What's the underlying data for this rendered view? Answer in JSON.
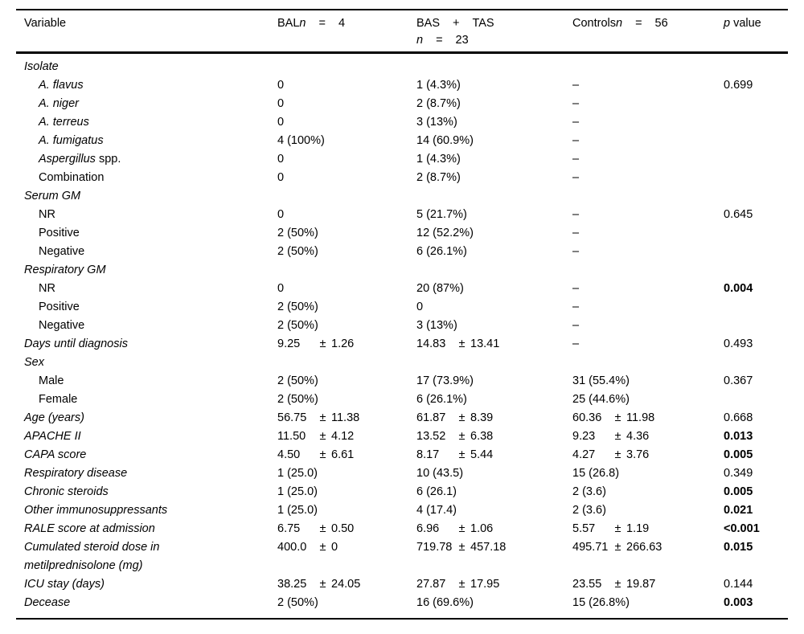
{
  "table": {
    "pm": "±",
    "header": {
      "variable": "Variable",
      "bal": {
        "label": "BAL",
        "n": "n",
        "eq": "=",
        "count": "4"
      },
      "bas": {
        "part1": "BAS",
        "plus": "+",
        "part2": "TAS",
        "n": "n",
        "eq": "=",
        "count": "23"
      },
      "controls": {
        "label": "Controls",
        "n": "n",
        "eq": "=",
        "count": "56"
      },
      "pvalue": {
        "p": "p",
        "rest": "value"
      }
    },
    "rows": [
      {
        "label": "Isolate",
        "italic": true,
        "indent": false,
        "cells": [
          null,
          null,
          null
        ],
        "p": null
      },
      {
        "label": "A. flavus",
        "italic": true,
        "indent": true,
        "cells": [
          "0",
          "1 (4.3%)",
          "–"
        ],
        "p": "0.699",
        "pbold": false
      },
      {
        "label": "A. niger",
        "italic": true,
        "indent": true,
        "cells": [
          "0",
          "2 (8.7%)",
          "–"
        ],
        "p": null
      },
      {
        "label": "A. terreus",
        "italic": true,
        "indent": true,
        "cells": [
          "0",
          "3 (13%)",
          "–"
        ],
        "p": null
      },
      {
        "label": "A. fumigatus",
        "italic": true,
        "indent": true,
        "cells": [
          "4 (100%)",
          "14 (60.9%)",
          "–"
        ],
        "p": null
      },
      {
        "label": "Aspergillus",
        "label_suffix": " spp.",
        "italic": true,
        "indent": true,
        "cells": [
          "0",
          "1 (4.3%)",
          "–"
        ],
        "p": null
      },
      {
        "label": "Combination",
        "italic": false,
        "indent": true,
        "cells": [
          "0",
          "2 (8.7%)",
          "–"
        ],
        "p": null
      },
      {
        "label": "Serum GM",
        "italic": true,
        "indent": false,
        "cells": [
          null,
          null,
          null
        ],
        "p": null
      },
      {
        "label": "NR",
        "italic": false,
        "indent": true,
        "cells": [
          "0",
          "5 (21.7%)",
          "–"
        ],
        "p": "0.645",
        "pbold": false
      },
      {
        "label": "Positive",
        "italic": false,
        "indent": true,
        "cells": [
          "2 (50%)",
          "12 (52.2%)",
          "–"
        ],
        "p": null
      },
      {
        "label": "Negative",
        "italic": false,
        "indent": true,
        "cells": [
          "2 (50%)",
          "6 (26.1%)",
          "–"
        ],
        "p": null
      },
      {
        "label": "Respiratory GM",
        "italic": true,
        "indent": false,
        "cells": [
          null,
          null,
          null
        ],
        "p": null
      },
      {
        "label": "NR",
        "italic": false,
        "indent": true,
        "cells": [
          "0",
          "20 (87%)",
          "–"
        ],
        "p": "0.004",
        "pbold": true
      },
      {
        "label": "Positive",
        "italic": false,
        "indent": true,
        "cells": [
          "2 (50%)",
          "0",
          "–"
        ],
        "p": null
      },
      {
        "label": "Negative",
        "italic": false,
        "indent": true,
        "cells": [
          "2 (50%)",
          "3 (13%)",
          "–"
        ],
        "p": null
      },
      {
        "label": "Days until diagnosis",
        "italic": true,
        "indent": false,
        "cells": [
          {
            "m": "9.25",
            "s": "1.26"
          },
          {
            "m": "14.83",
            "s": "13.41"
          },
          "–"
        ],
        "p": "0.493",
        "pbold": false
      },
      {
        "label": "Sex",
        "italic": true,
        "indent": false,
        "cells": [
          null,
          null,
          null
        ],
        "p": null
      },
      {
        "label": "Male",
        "italic": false,
        "indent": true,
        "cells": [
          "2 (50%)",
          "17 (73.9%)",
          "31 (55.4%)"
        ],
        "p": "0.367",
        "pbold": false
      },
      {
        "label": "Female",
        "italic": false,
        "indent": true,
        "cells": [
          "2 (50%)",
          "6 (26.1%)",
          "25 (44.6%)"
        ],
        "p": null
      },
      {
        "label": "Age (years)",
        "italic": true,
        "indent": false,
        "cells": [
          {
            "m": "56.75",
            "s": "11.38"
          },
          {
            "m": "61.87",
            "s": "8.39"
          },
          {
            "m": "60.36",
            "s": "11.98"
          }
        ],
        "p": "0.668",
        "pbold": false
      },
      {
        "label": "APACHE II",
        "italic": true,
        "indent": false,
        "cells": [
          {
            "m": "11.50",
            "s": "4.12"
          },
          {
            "m": "13.52",
            "s": "6.38"
          },
          {
            "m": "9.23",
            "s": "4.36"
          }
        ],
        "p": "0.013",
        "pbold": true
      },
      {
        "label": "CAPA score",
        "italic": true,
        "indent": false,
        "cells": [
          {
            "m": "4.50",
            "s": "6.61"
          },
          {
            "m": "8.17",
            "s": "5.44"
          },
          {
            "m": "4.27",
            "s": "3.76"
          }
        ],
        "p": "0.005",
        "pbold": true
      },
      {
        "label": "Respiratory disease",
        "italic": true,
        "indent": false,
        "cells": [
          "1 (25.0)",
          "10 (43.5)",
          "15 (26.8)"
        ],
        "p": "0.349",
        "pbold": false
      },
      {
        "label": "Chronic steroids",
        "italic": true,
        "indent": false,
        "cells": [
          "1 (25.0)",
          "6 (26.1)",
          "2 (3.6)"
        ],
        "p": "0.005",
        "pbold": true
      },
      {
        "label": "Other immunosuppressants",
        "italic": true,
        "indent": false,
        "cells": [
          "1 (25.0)",
          "4 (17.4)",
          "2 (3.6)"
        ],
        "p": "0.021",
        "pbold": true
      },
      {
        "label": "RALE score at admission",
        "italic": true,
        "indent": false,
        "cells": [
          {
            "m": "6.75",
            "s": "0.50"
          },
          {
            "m": "6.96",
            "s": "1.06"
          },
          {
            "m": "5.57",
            "s": "1.19"
          }
        ],
        "p": "<0.001",
        "pbold": true
      },
      {
        "label": "Cumulated steroid dose in",
        "label2": "metilprednisolone (mg)",
        "italic": true,
        "indent": false,
        "cells": [
          {
            "m": "400.0",
            "s": "0"
          },
          {
            "m": "719.78",
            "s": "457.18"
          },
          {
            "m": "495.71",
            "s": "266.63"
          }
        ],
        "p": "0.015",
        "pbold": true
      },
      {
        "label": "ICU stay (days)",
        "italic": true,
        "indent": false,
        "cells": [
          {
            "m": "38.25",
            "s": "24.05"
          },
          {
            "m": "27.87",
            "s": "17.95"
          },
          {
            "m": "23.55",
            "s": "19.87"
          }
        ],
        "p": "0.144",
        "pbold": false
      },
      {
        "label": "Decease",
        "italic": true,
        "indent": false,
        "cells": [
          "2 (50%)",
          "16 (69.6%)",
          "15 (26.8%)"
        ],
        "p": "0.003",
        "pbold": true
      }
    ]
  }
}
